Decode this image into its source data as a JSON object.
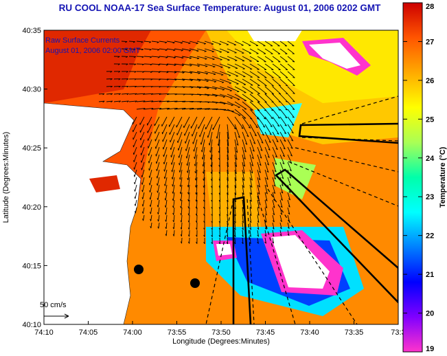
{
  "title": "RU COOL  NOAA-17  Sea Surface Temperature:  August 01, 2006 0202 GMT",
  "annotation": {
    "line1": "Raw Surface Currents",
    "line2": "August 01, 2006 02:00 GMT"
  },
  "scale": {
    "label": "50 cm/s"
  },
  "axes": {
    "xlabel": "Longitude (Degrees:Minutes)",
    "ylabel": "Latitude (Degrees:Minutes)",
    "xticks": [
      "74:10",
      "74:05",
      "74:00",
      "73:55",
      "73:50",
      "73:45",
      "73:40",
      "73:35",
      "73:3"
    ],
    "yticks": [
      "40:35",
      "40:30",
      "40:25",
      "40:20",
      "40:15",
      "40:10"
    ]
  },
  "colorbar": {
    "label": "Temperature (°C)",
    "ticks": [
      "28",
      "27",
      "26",
      "25",
      "24",
      "23",
      "22",
      "21",
      "20",
      "19"
    ],
    "range": [
      19,
      28
    ],
    "colors": [
      "#ff33cc",
      "#8000ff",
      "#0000ff",
      "#0080ff",
      "#00ffff",
      "#00ffaa",
      "#aaff55",
      "#ffff00",
      "#ffaa00",
      "#ff5500",
      "#cc0000"
    ]
  }
}
